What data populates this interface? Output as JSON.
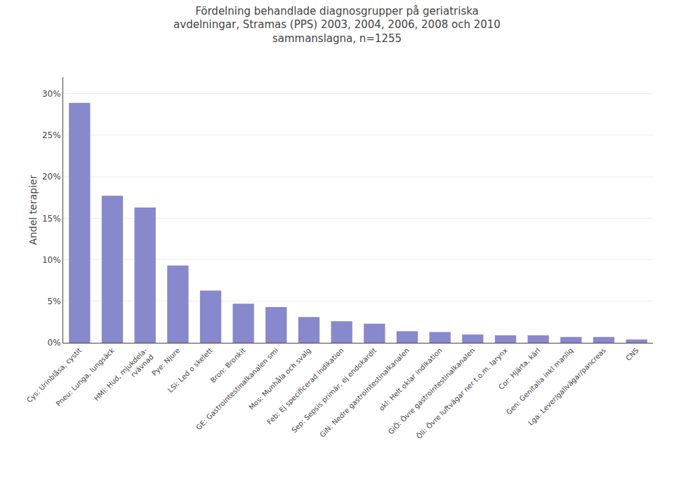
{
  "chart_data": {
    "type": "bar",
    "title": "Fördelning behandlade diagnosgrupper på geriatriska\navdelningar, Stramas (PPS) 2003, 2004, 2006, 2008 och 2010\nsammanslagna, n=1255",
    "ylabel": "Andel terapier",
    "categories": [
      "Cys: Urinblåsa, cystit",
      "Pneu: Lunga, lungsäck",
      "HMi: Hud, mjukdela-\nrvävnad",
      "Pye: Njure",
      "LSi: Led o skelett",
      "Bron: Bronkit",
      "GE: Gastrointestinalkanalen smi",
      "Mos: Munhåla och svalg",
      "Feb: Ej specificerad indikation",
      "Sep: Sepsis primär, ej endokardit",
      "GiN: Nedre gastrointestinalkanalen",
      "okl: Helt oklar indikation",
      "GiÖ: Övre gastrointestinalkanalen",
      "Öli: Övre luftvägar ner t.o.m. larynx",
      "Cor: Hjärta, kärl",
      "Gen: Genitalia inkl manliq",
      "Lga: Lever/gallvägar/pancreas",
      "CNS"
    ],
    "values": [
      0.289,
      0.177,
      0.163,
      0.093,
      0.063,
      0.047,
      0.043,
      0.031,
      0.026,
      0.023,
      0.014,
      0.013,
      0.01,
      0.009,
      0.009,
      0.007,
      0.007,
      0.004
    ],
    "color": "#8888cc",
    "ylim": [
      0,
      0.32
    ],
    "yticks": [
      {
        "value": 0.0,
        "label": "0%"
      },
      {
        "value": 0.05,
        "label": "5%"
      },
      {
        "value": 0.1,
        "label": "10%"
      },
      {
        "value": 0.15,
        "label": "15%"
      },
      {
        "value": 0.2,
        "label": "20%"
      },
      {
        "value": 0.25,
        "label": "25%"
      },
      {
        "value": 0.3,
        "label": "30%"
      }
    ],
    "grid": true
  }
}
